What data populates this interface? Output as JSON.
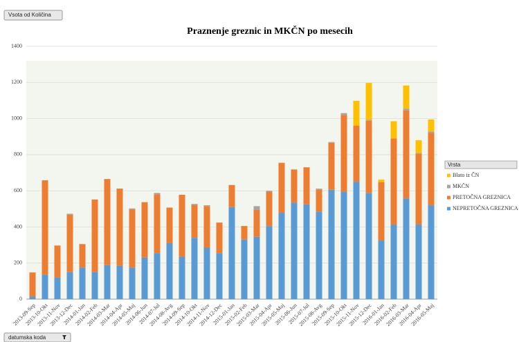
{
  "chart_data": {
    "type": "stacked_bar",
    "title": "Praznenje greznic in MKČN po mesecih",
    "value_field": "Vsota od Količina",
    "category_field": "datumska koda",
    "legend_title": "Vrsta",
    "legend_position": "right",
    "grid": true,
    "ylim": [
      0,
      1400
    ],
    "yticks": [
      0,
      200,
      400,
      600,
      800,
      1000,
      1200,
      1400
    ],
    "categories": [
      "2013-09-Sep",
      "2013-10-Okt",
      "2013-11-Nov",
      "2013-12-Dec",
      "2014-01-Jan",
      "2014-02-Feb",
      "2014-03-Mar",
      "2014-04-Apr",
      "2014-05-Maj",
      "2014-06-Jun",
      "2014-07-Jul",
      "2014-08-Avg",
      "2014-09-Sep",
      "2014-10-Okt",
      "2014-11-Nov",
      "2014-12-Dec",
      "2015-01-Jan",
      "2015-02-Feb",
      "2015-03-Mar",
      "2015-04-Apr",
      "2015-05-Maj",
      "2015-06-Jun",
      "2015-07-Jul",
      "2015-08-Avg",
      "2015-09-Sep",
      "2015-10-Okt",
      "2015-11-Nov",
      "2015-12-Dec",
      "2016-01-Jan",
      "2016-02-Feb",
      "2016-03-Mar",
      "2016-04-Apr",
      "2016-05-Maj"
    ],
    "series": [
      {
        "name": "NEPRETOČNA GREZNICA",
        "color": "#5b9bd5",
        "values": [
          15,
          135,
          120,
          150,
          175,
          150,
          188,
          185,
          175,
          230,
          255,
          310,
          235,
          340,
          285,
          255,
          510,
          330,
          345,
          405,
          478,
          535,
          525,
          485,
          605,
          595,
          650,
          588,
          325,
          413,
          558,
          413,
          520
        ]
      },
      {
        "name": "PRETOČNA GREZNICA",
        "color": "#ed7d31",
        "values": [
          133,
          523,
          177,
          318,
          130,
          402,
          477,
          427,
          322,
          307,
          325,
          197,
          343,
          182,
          230,
          169,
          122,
          75,
          150,
          190,
          277,
          183,
          205,
          122,
          260,
          425,
          310,
          400,
          323,
          477,
          487,
          392,
          400
        ]
      },
      {
        "name": "MKČN",
        "color": "#a5a5a5",
        "values": [
          0,
          0,
          0,
          5,
          0,
          0,
          0,
          0,
          5,
          0,
          8,
          0,
          0,
          5,
          5,
          0,
          0,
          0,
          20,
          5,
          0,
          0,
          0,
          5,
          5,
          10,
          0,
          5,
          0,
          0,
          10,
          5,
          8
        ]
      },
      {
        "name": "Blato iz ČN",
        "color": "#ffc000",
        "values": [
          0,
          0,
          0,
          0,
          0,
          0,
          0,
          0,
          0,
          0,
          0,
          0,
          0,
          0,
          0,
          0,
          0,
          0,
          0,
          0,
          0,
          0,
          0,
          0,
          0,
          0,
          138,
          204,
          14,
          95,
          128,
          70,
          67
        ]
      }
    ]
  }
}
